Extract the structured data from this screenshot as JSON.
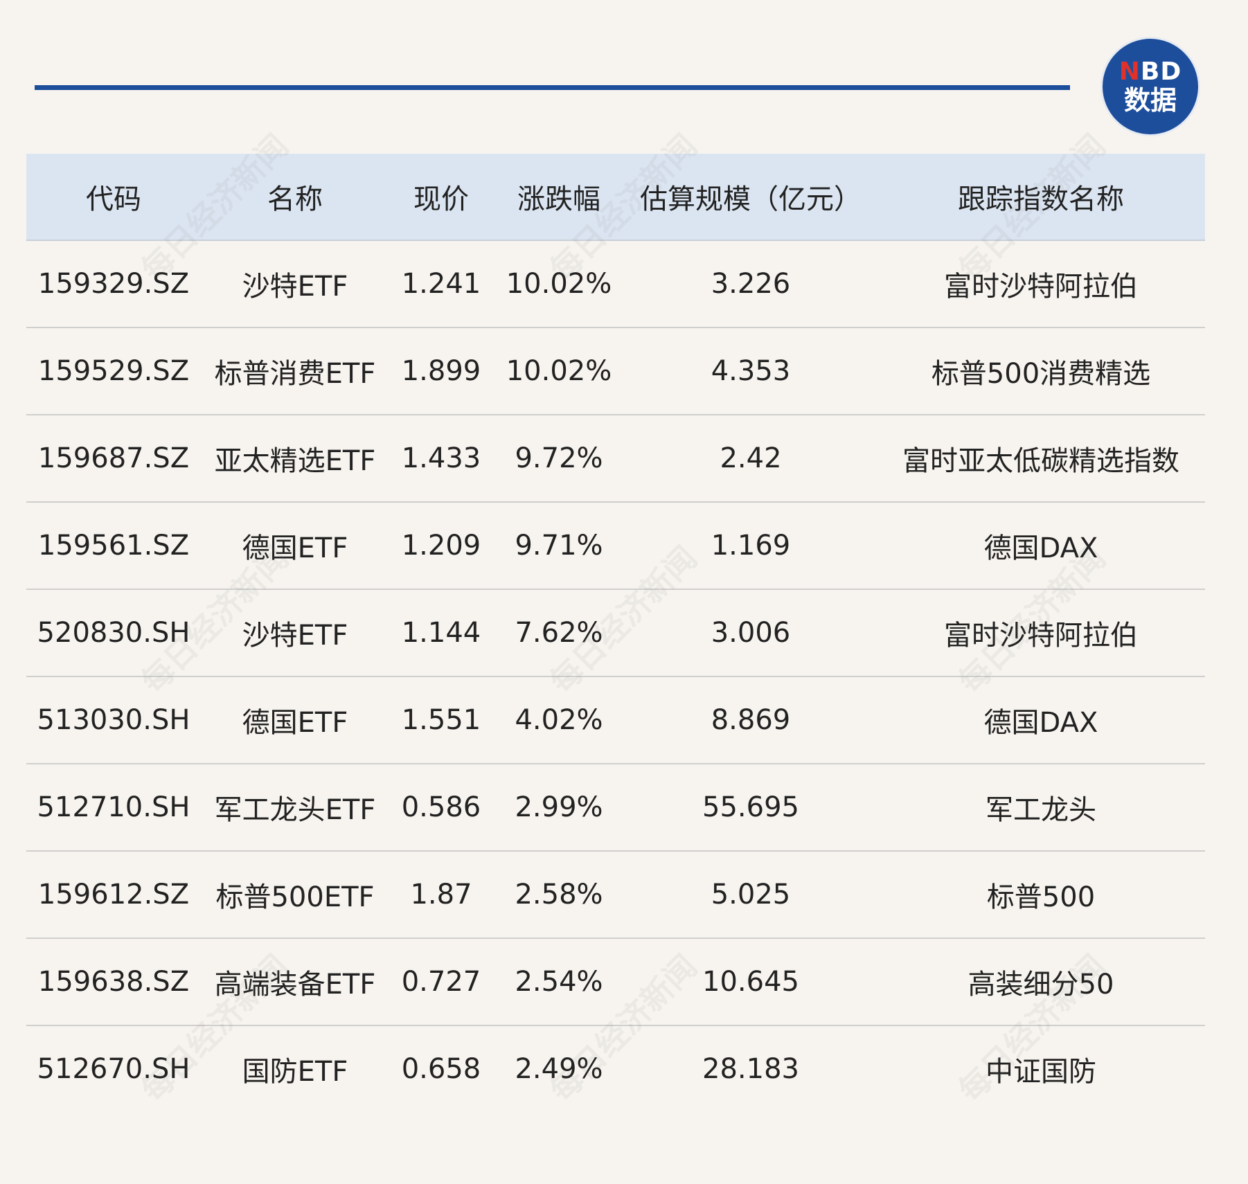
{
  "logo": {
    "line1_n": "N",
    "line1_rest": "BD",
    "line2": "数据"
  },
  "watermark_text": "每日经济新闻",
  "table": {
    "headers": [
      "代码",
      "名称",
      "现价",
      "涨跌幅",
      "估算规模（亿元）",
      "跟踪指数名称"
    ],
    "rows": [
      [
        "159329.SZ",
        "沙特ETF",
        "1.241",
        "10.02%",
        "3.226",
        "富时沙特阿拉伯"
      ],
      [
        "159529.SZ",
        "标普消费ETF",
        "1.899",
        "10.02%",
        "4.353",
        "标普500消费精选"
      ],
      [
        "159687.SZ",
        "亚太精选ETF",
        "1.433",
        "9.72%",
        "2.42",
        "富时亚太低碳精选指数"
      ],
      [
        "159561.SZ",
        "德国ETF",
        "1.209",
        "9.71%",
        "1.169",
        "德国DAX"
      ],
      [
        "520830.SH",
        "沙特ETF",
        "1.144",
        "7.62%",
        "3.006",
        "富时沙特阿拉伯"
      ],
      [
        "513030.SH",
        "德国ETF",
        "1.551",
        "4.02%",
        "8.869",
        "德国DAX"
      ],
      [
        "512710.SH",
        "军工龙头ETF",
        "0.586",
        "2.99%",
        "55.695",
        "军工龙头"
      ],
      [
        "159612.SZ",
        "标普500ETF",
        "1.87",
        "2.58%",
        "5.025",
        "标普500"
      ],
      [
        "159638.SZ",
        "高端装备ETF",
        "0.727",
        "2.54%",
        "10.645",
        "高装细分50"
      ],
      [
        "512670.SH",
        "国防ETF",
        "0.658",
        "2.49%",
        "28.183",
        "中证国防"
      ]
    ]
  }
}
